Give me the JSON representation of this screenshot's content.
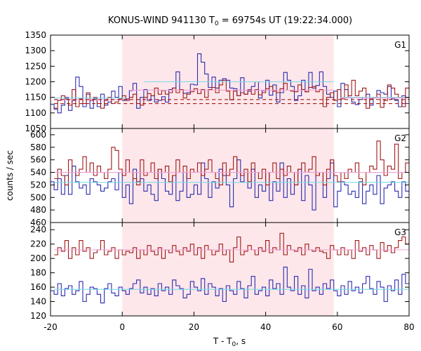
{
  "chart_data": {
    "type": "line",
    "title": "KONUS-WIND 941130 T",
    "title_sub": "0",
    "title_rest": " = 69754s UT (19:22:34.000)",
    "xlabel": "T - T",
    "xlabel_sub": "0",
    "xlabel_rest": ", s",
    "ylabel": "counts / sec",
    "xlim": [
      -20,
      80
    ],
    "x_ticks": [
      -20,
      0,
      20,
      40,
      60,
      80
    ],
    "shaded_interval": [
      0,
      59
    ],
    "colors": {
      "blue": "#2b2bb0",
      "red": "#a01818",
      "shade": "#fde7ea",
      "bg_fit_cyan": "#7fd8e8",
      "bg_fit_pink": "#f0a0d8"
    },
    "panels": [
      {
        "name": "G1",
        "ylim": [
          1050,
          1350
        ],
        "y_ticks": [
          1050,
          1100,
          1150,
          1200,
          1250,
          1300,
          1350
        ],
        "bin_width": 1.0,
        "blue_start": -20,
        "blue_values": [
          1128,
          1112,
          1100,
          1125,
          1150,
          1108,
          1140,
          1215,
          1185,
          1120,
          1160,
          1115,
          1145,
          1120,
          1160,
          1125,
          1135,
          1170,
          1150,
          1185,
          1140,
          1145,
          1172,
          1195,
          1115,
          1150,
          1175,
          1140,
          1155,
          1135,
          1140,
          1152,
          1135,
          1175,
          1180,
          1232,
          1175,
          1163,
          1165,
          1192,
          1190,
          1290,
          1263,
          1225,
          1182,
          1215,
          1180,
          1205,
          1210,
          1205,
          1180,
          1178,
          1155,
          1213,
          1160,
          1170,
          1185,
          1200,
          1148,
          1172,
          1205,
          1157,
          1190,
          1135,
          1165,
          1230,
          1205,
          1185,
          1140,
          1155,
          1205,
          1168,
          1230,
          1180,
          1188,
          1232,
          1185,
          1160,
          1150,
          1170,
          1120,
          1195,
          1175,
          1150,
          1135,
          1127,
          1143,
          1150,
          1160,
          1125,
          1148,
          1172,
          1165,
          1160,
          1185,
          1145,
          1140,
          1120,
          1155,
          1130
        ],
        "red_start": -19,
        "red_values": [
          1115,
          1140,
          1155,
          1145,
          1125,
          1175,
          1120,
          1145,
          1130,
          1165,
          1140,
          1150,
          1130,
          1115,
          1140,
          1150,
          1130,
          1135,
          1145,
          1155,
          1140,
          1150,
          1160,
          1130,
          1125,
          1150,
          1162,
          1155,
          1180,
          1160,
          1172,
          1160,
          1165,
          1180,
          1165,
          1175,
          1148,
          1160,
          1168,
          1178,
          1162,
          1175,
          1150,
          1175,
          1182,
          1165,
          1190,
          1205,
          1170,
          1142,
          1170,
          1155,
          1165,
          1160,
          1175,
          1160,
          1175,
          1158,
          1165,
          1178,
          1185,
          1170,
          1165,
          1178,
          1195,
          1173,
          1170,
          1168,
          1190,
          1175,
          1168,
          1182,
          1185,
          1168,
          1175,
          1120,
          1150,
          1165,
          1140,
          1175,
          1145,
          1190,
          1155,
          1205,
          1155,
          1170,
          1180,
          1115,
          1145,
          1150,
          1160,
          1118,
          1140,
          1190,
          1180,
          1160,
          1150,
          1120,
          1180
        ],
        "fits": [
          {
            "color": "bg_fit_cyan",
            "dash": false,
            "x": [
              -19,
              1
            ],
            "y": [
              1148,
              1148
            ]
          },
          {
            "color": "bg_fit_cyan",
            "dash": false,
            "x": [
              6,
              59
            ],
            "y": [
              1200,
              1200
            ]
          },
          {
            "color": "bg_fit_cyan",
            "dash": false,
            "x": [
              61,
              80
            ],
            "y": [
              1150,
              1150
            ]
          },
          {
            "color": "bg_fit_pink",
            "dash": false,
            "x": [
              -19,
              2
            ],
            "y": [
              1142,
              1142
            ]
          },
          {
            "color": "bg_fit_pink",
            "dash": false,
            "x": [
              2,
              59
            ],
            "y": [
              1173,
              1173
            ]
          },
          {
            "color": "bg_fit_pink",
            "dash": false,
            "x": [
              61,
              80
            ],
            "y": [
              1148,
              1148
            ]
          },
          {
            "color": "red",
            "dash": true,
            "x": [
              -19,
              80
            ],
            "y": [
              1130,
              1130
            ]
          },
          {
            "color": "red",
            "dash": true,
            "x": [
              -19,
              80
            ],
            "y": [
              1143,
              1143
            ]
          }
        ]
      },
      {
        "name": "G2",
        "ylim": [
          460,
          610
        ],
        "y_ticks": [
          460,
          480,
          500,
          520,
          540,
          560,
          580,
          600
        ],
        "bin_width": 1.0,
        "blue_start": -20,
        "blue_values": [
          525,
          512,
          530,
          505,
          535,
          505,
          550,
          525,
          515,
          520,
          505,
          530,
          525,
          520,
          510,
          515,
          525,
          530,
          512,
          540,
          500,
          520,
          490,
          545,
          525,
          530,
          510,
          520,
          505,
          495,
          545,
          530,
          510,
          505,
          535,
          495,
          510,
          540,
          500,
          505,
          520,
          505,
          555,
          530,
          500,
          525,
          515,
          545,
          535,
          520,
          485,
          530,
          560,
          525,
          540,
          515,
          545,
          500,
          520,
          510,
          540,
          495,
          525,
          510,
          555,
          500,
          530,
          505,
          520,
          545,
          495,
          535,
          520,
          480,
          535,
          540,
          500,
          530,
          555,
          485,
          510,
          525,
          520,
          505,
          510,
          500,
          525,
          490,
          510,
          520,
          505,
          535,
          490,
          515,
          520,
          525,
          510,
          500,
          525,
          510
        ],
        "red_start": -19,
        "red_values": [
          530,
          545,
          535,
          520,
          560,
          540,
          535,
          545,
          565,
          540,
          555,
          535,
          550,
          540,
          530,
          545,
          580,
          575,
          545,
          535,
          560,
          540,
          530,
          520,
          560,
          535,
          540,
          555,
          530,
          545,
          540,
          550,
          525,
          535,
          560,
          540,
          550,
          530,
          545,
          540,
          555,
          535,
          545,
          560,
          540,
          530,
          520,
          555,
          535,
          545,
          565,
          540,
          535,
          545,
          525,
          555,
          540,
          530,
          545,
          520,
          540,
          555,
          530,
          545,
          535,
          550,
          540,
          520,
          545,
          555,
          540,
          545,
          565,
          535,
          540,
          520,
          545,
          560,
          535,
          525,
          540,
          530,
          545,
          540,
          555,
          530,
          520,
          540,
          550,
          545,
          590,
          560,
          535,
          550,
          545,
          585,
          530,
          540,
          555
        ],
        "fits": [
          {
            "color": "bg_fit_cyan",
            "dash": false,
            "x": [
              -19,
              80
            ],
            "y": [
              524,
              524
            ]
          },
          {
            "color": "bg_fit_pink",
            "dash": false,
            "x": [
              -19,
              80
            ],
            "y": [
              540,
              540
            ]
          }
        ]
      },
      {
        "name": "G3",
        "ylim": [
          120,
          250
        ],
        "y_ticks": [
          120,
          140,
          160,
          180,
          200,
          220,
          240
        ],
        "bin_width": 1.0,
        "blue_start": -20,
        "blue_values": [
          155,
          150,
          165,
          148,
          158,
          162,
          150,
          155,
          168,
          140,
          150,
          160,
          158,
          150,
          138,
          158,
          165,
          152,
          148,
          160,
          155,
          150,
          158,
          165,
          170,
          152,
          160,
          150,
          158,
          148,
          165,
          155,
          160,
          150,
          170,
          162,
          158,
          145,
          150,
          168,
          160,
          155,
          172,
          150,
          165,
          160,
          148,
          158,
          140,
          162,
          155,
          150,
          168,
          158,
          145,
          162,
          175,
          150,
          155,
          160,
          148,
          170,
          158,
          165,
          150,
          188,
          160,
          155,
          175,
          150,
          162,
          145,
          185,
          155,
          160,
          150,
          165,
          158,
          170,
          155,
          148,
          162,
          150,
          168,
          155,
          160,
          152,
          165,
          175,
          158,
          150,
          168,
          160,
          140,
          162,
          155,
          170,
          150,
          178,
          165
        ],
        "red_start": -19,
        "red_values": [
          205,
          215,
          210,
          225,
          200,
          215,
          205,
          225,
          210,
          215,
          200,
          208,
          212,
          225,
          205,
          210,
          215,
          200,
          212,
          205,
          210,
          208,
          215,
          200,
          212,
          205,
          218,
          210,
          205,
          215,
          200,
          212,
          208,
          218,
          210,
          205,
          215,
          210,
          220,
          205,
          215,
          200,
          218,
          212,
          205,
          210,
          220,
          205,
          212,
          195,
          215,
          230,
          205,
          210,
          218,
          212,
          205,
          215,
          210,
          225,
          208,
          215,
          212,
          235,
          205,
          218,
          212,
          210,
          215,
          205,
          220,
          212,
          210,
          215,
          210,
          208,
          200,
          218,
          212,
          205,
          215,
          205,
          212,
          200,
          225,
          210,
          215,
          205,
          218,
          212,
          200,
          222,
          210,
          218,
          208,
          215,
          225,
          230,
          220
        ],
        "fits": [
          {
            "color": "bg_fit_cyan",
            "dash": false,
            "x": [
              -19,
              80
            ],
            "y": [
              157,
              157
            ]
          },
          {
            "color": "bg_fit_pink",
            "dash": false,
            "x": [
              -19,
              80
            ],
            "y": [
              212,
              212
            ]
          }
        ]
      }
    ]
  }
}
